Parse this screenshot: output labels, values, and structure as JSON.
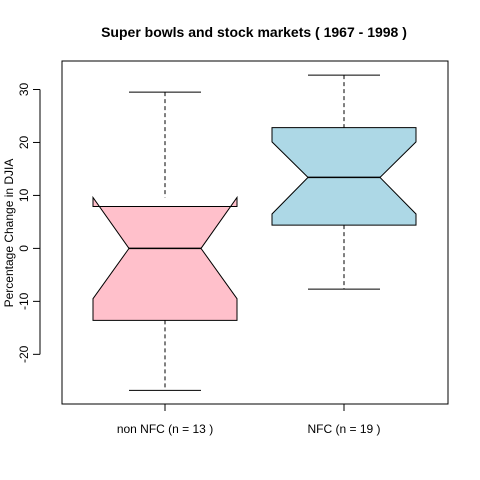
{
  "chart_data": {
    "type": "box",
    "title": "Super bowls and stock markets ( 1967 - 1998 )",
    "xlabel": "",
    "ylabel": "Percentage Change in DJIA",
    "ylim": [
      -29,
      35
    ],
    "yticks": [
      -20,
      -10,
      0,
      10,
      20,
      30
    ],
    "notched": true,
    "grid": false,
    "groups": [
      {
        "label": "non NFC (n = 13 )",
        "whisker_low": -26.8,
        "q1": -13.6,
        "median": 0.0,
        "q3": 7.9,
        "whisker_high": 29.5,
        "notch_low": -9.5,
        "notch_high": 9.6,
        "fill": "#ffc0cb"
      },
      {
        "label": "NFC (n = 19 )",
        "whisker_low": -7.7,
        "q1": 4.4,
        "median": 13.4,
        "q3": 22.8,
        "whisker_high": 32.7,
        "notch_low": 6.5,
        "notch_high": 20.1,
        "fill": "#add8e6"
      }
    ]
  }
}
